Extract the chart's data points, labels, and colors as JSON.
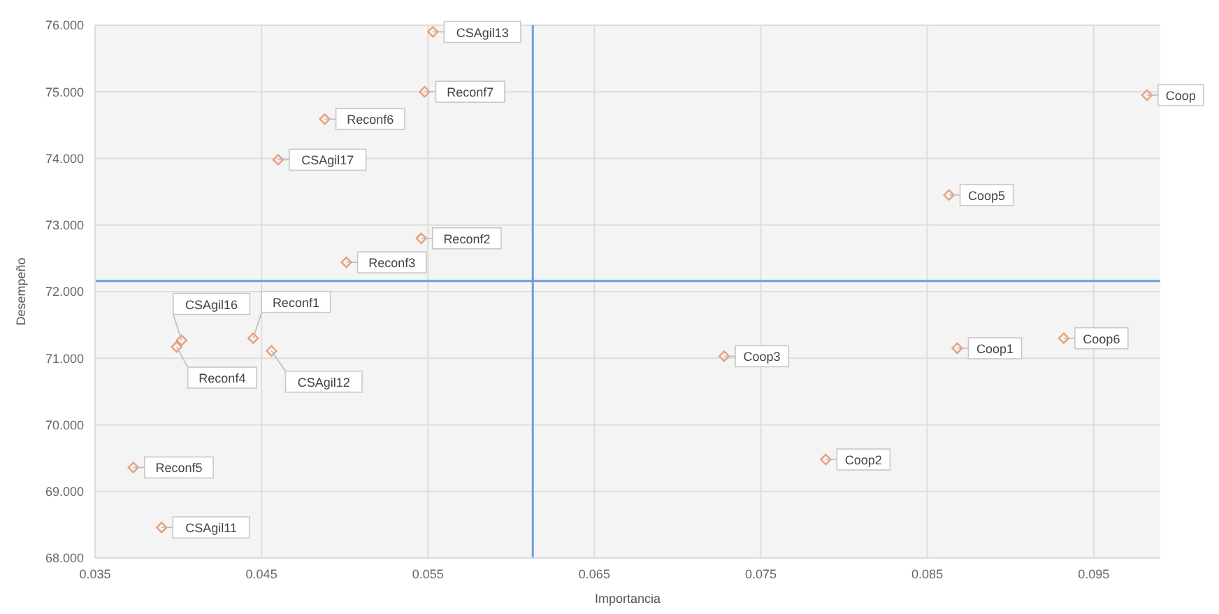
{
  "chart_data": {
    "type": "scatter",
    "xlabel": "Importancia",
    "ylabel": "Desempeño",
    "x": [
      0.0553,
      0.0548,
      0.0488,
      0.046,
      0.0546,
      0.0501,
      0.0982,
      0.0863,
      0.0402,
      0.0399,
      0.0445,
      0.0456,
      0.0373,
      0.039,
      0.0728,
      0.0868,
      0.0932,
      0.0789
    ],
    "series": [
      {
        "color": "#e9a07a",
        "values": [
          75.9,
          75.0,
          74.59,
          73.98,
          72.8,
          72.44,
          74.95,
          73.45,
          71.27,
          71.17,
          71.3,
          71.11,
          69.36,
          68.46,
          71.03,
          71.15,
          71.3,
          69.48
        ]
      }
    ],
    "marker": "diamond",
    "grid": true,
    "xlim": [
      0.035,
      0.099
    ],
    "xticks": [
      0.035,
      0.045,
      0.055,
      0.065,
      0.075,
      0.085,
      0.095
    ],
    "ylim": [
      68,
      76
    ],
    "yticks": [
      {
        "value": 68,
        "label": "68.000"
      },
      {
        "value": 69,
        "label": "69.000"
      },
      {
        "value": 70,
        "label": "70.000"
      },
      {
        "value": 71,
        "label": "71.000"
      },
      {
        "value": 72,
        "label": "72.000"
      },
      {
        "value": 73,
        "label": "73.000"
      },
      {
        "value": 74,
        "label": "74.000"
      },
      {
        "value": 75,
        "label": "75.000"
      },
      {
        "value": 76,
        "label": "76.000"
      }
    ],
    "ref_lines": [
      {
        "axis": "x",
        "value": 0.0613,
        "color": "#6a9fd8"
      },
      {
        "axis": "y",
        "value": 72.16,
        "color": "#6a9fd8"
      }
    ],
    "annotations": [
      {
        "text": "CSAgil13",
        "x": 0.0553,
        "y": 75.9
      },
      {
        "text": "Reconf7",
        "x": 0.0548,
        "y": 75.0
      },
      {
        "text": "Reconf6",
        "x": 0.0488,
        "y": 74.59
      },
      {
        "text": "CSAgil17",
        "x": 0.046,
        "y": 73.98
      },
      {
        "text": "Reconf2",
        "x": 0.0546,
        "y": 72.8
      },
      {
        "text": "Reconf3",
        "x": 0.0501,
        "y": 72.44
      },
      {
        "text": "Coop",
        "x": 0.0982,
        "y": 74.95
      },
      {
        "text": "Coop5",
        "x": 0.0863,
        "y": 73.45
      },
      {
        "text": "CSAgil16",
        "x": 0.0402,
        "y": 71.27
      },
      {
        "text": "Reconf4",
        "x": 0.0399,
        "y": 71.17
      },
      {
        "text": "Reconf1",
        "x": 0.0445,
        "y": 71.3
      },
      {
        "text": "CSAgil12",
        "x": 0.0456,
        "y": 71.11
      },
      {
        "text": "Reconf5",
        "x": 0.0373,
        "y": 69.36
      },
      {
        "text": "CSAgil11",
        "x": 0.039,
        "y": 68.46
      },
      {
        "text": "Coop3",
        "x": 0.0728,
        "y": 71.03
      },
      {
        "text": "Coop1",
        "x": 0.0868,
        "y": 71.15
      },
      {
        "text": "Coop6",
        "x": 0.0932,
        "y": 71.3
      },
      {
        "text": "Coop2",
        "x": 0.0789,
        "y": 69.48
      }
    ]
  }
}
